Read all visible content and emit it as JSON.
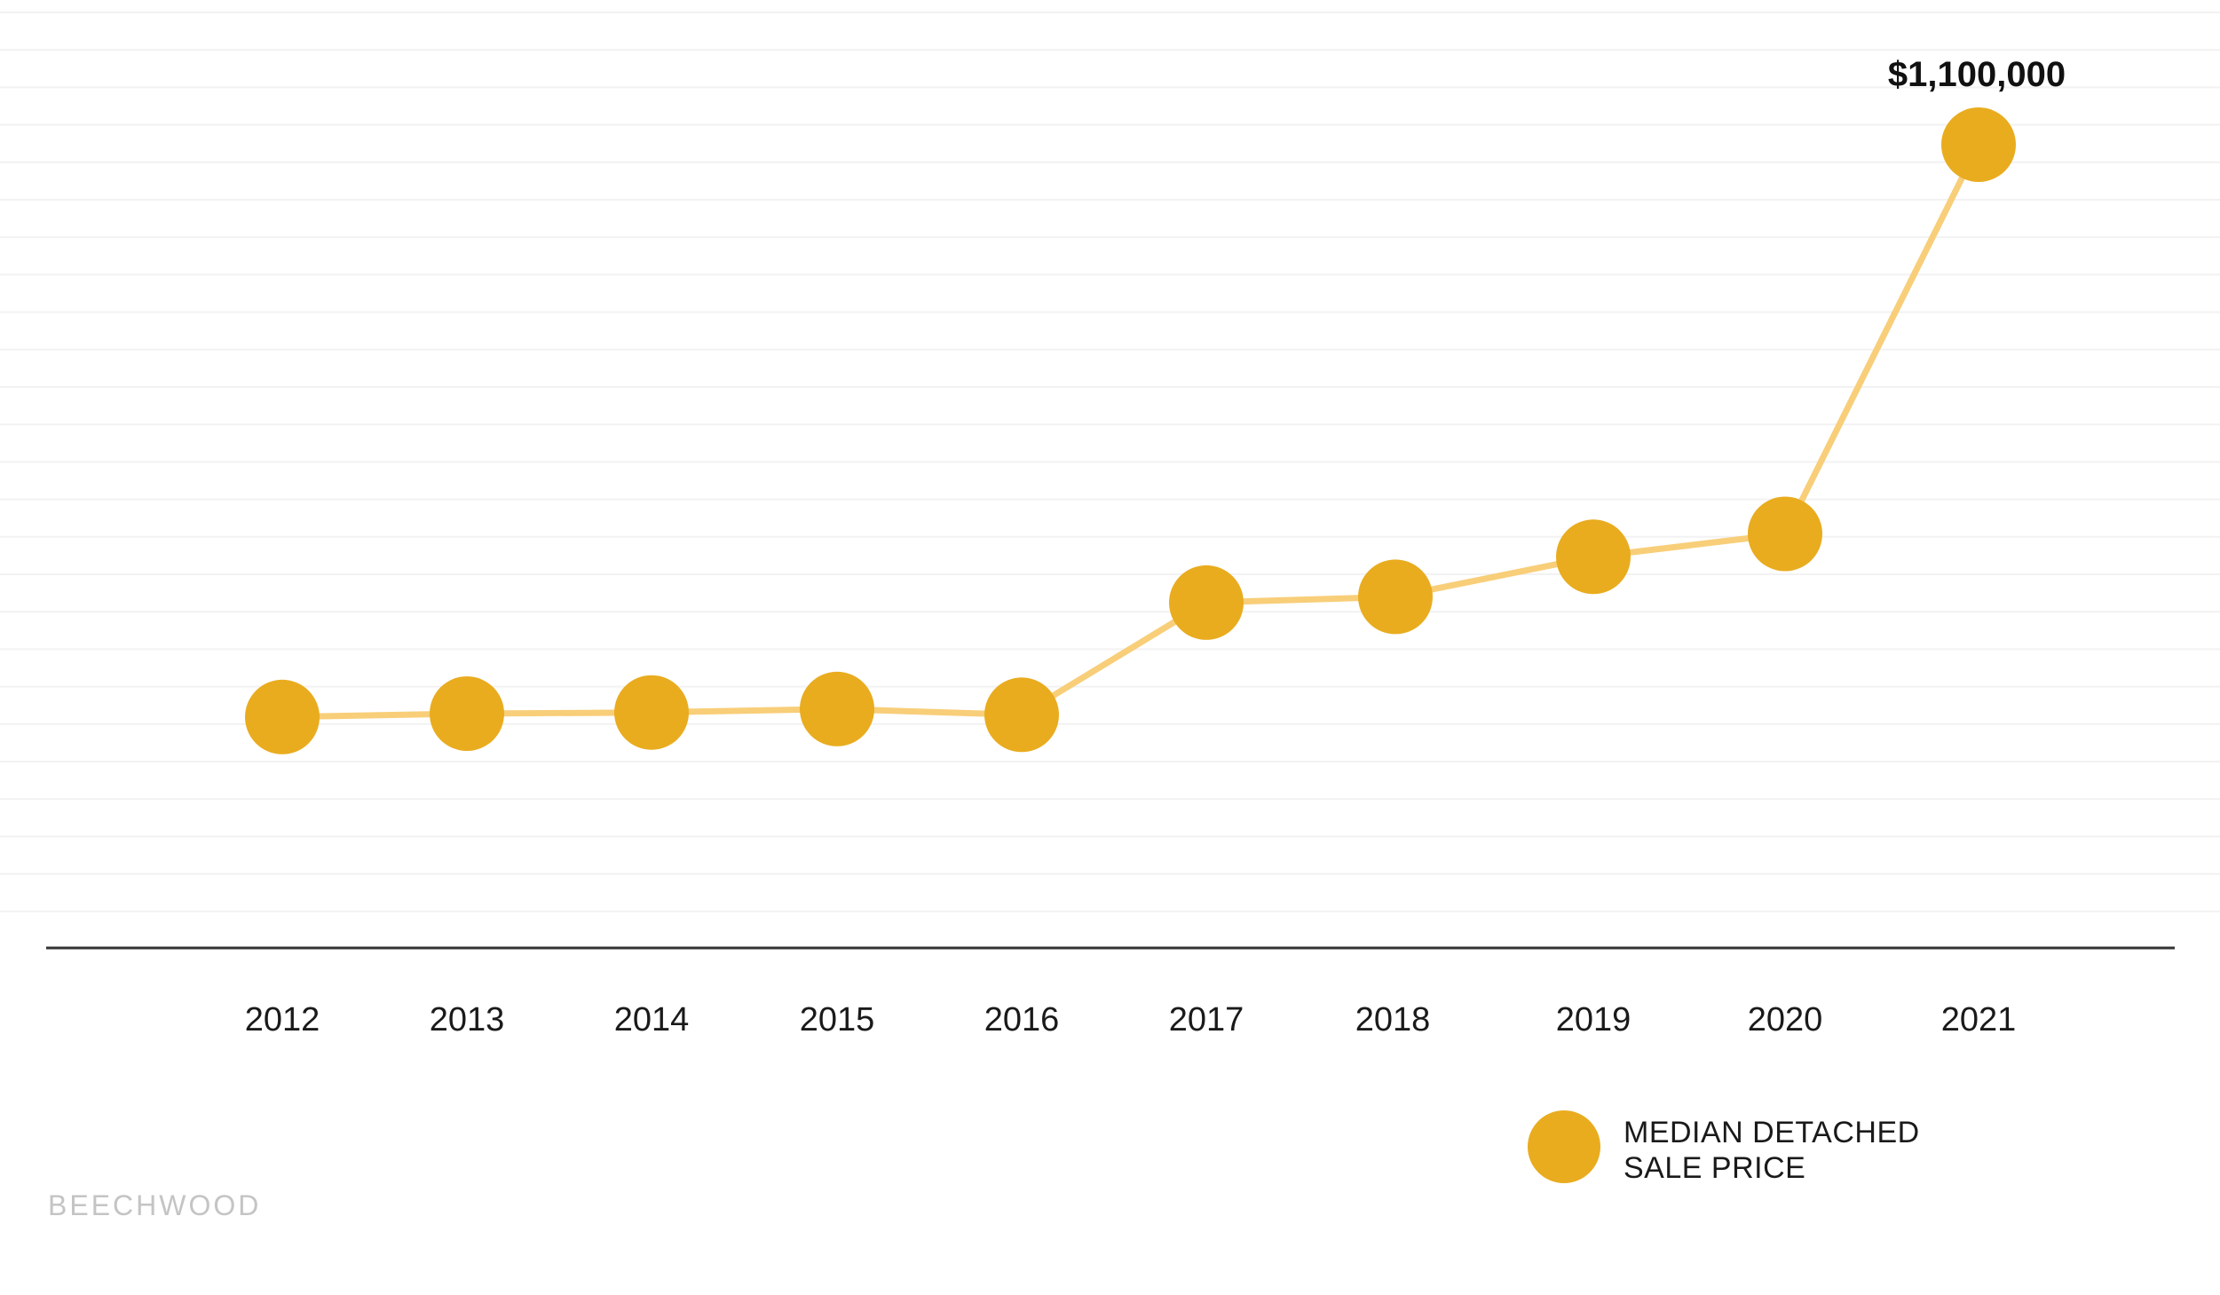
{
  "chart_data": {
    "type": "line",
    "title": "",
    "xlabel": "",
    "ylabel": "",
    "categories": [
      "2012",
      "2013",
      "2014",
      "2015",
      "2016",
      "2017",
      "2018",
      "2019",
      "2020",
      "2021"
    ],
    "series": [
      {
        "name": "MEDIAN DETACHED SALE PRICE",
        "values": [
          600000,
          603000,
          604000,
          607000,
          602000,
          700000,
          705000,
          740000,
          760000,
          1100000
        ]
      }
    ],
    "ylim": [
      420000,
      1200000
    ],
    "grid": true,
    "annotations": [
      {
        "category": "2021",
        "text": "$1,100,000"
      }
    ],
    "legend": {
      "placement": "bottom-right",
      "lines": [
        "MEDIAN DETACHED",
        "SALE PRICE"
      ]
    },
    "colors": {
      "marker": "#E9AC1F",
      "line": "#F8CE79",
      "axis": "#333333",
      "grid": "#f2f2f2"
    }
  },
  "brand": "BEECHWOOD"
}
